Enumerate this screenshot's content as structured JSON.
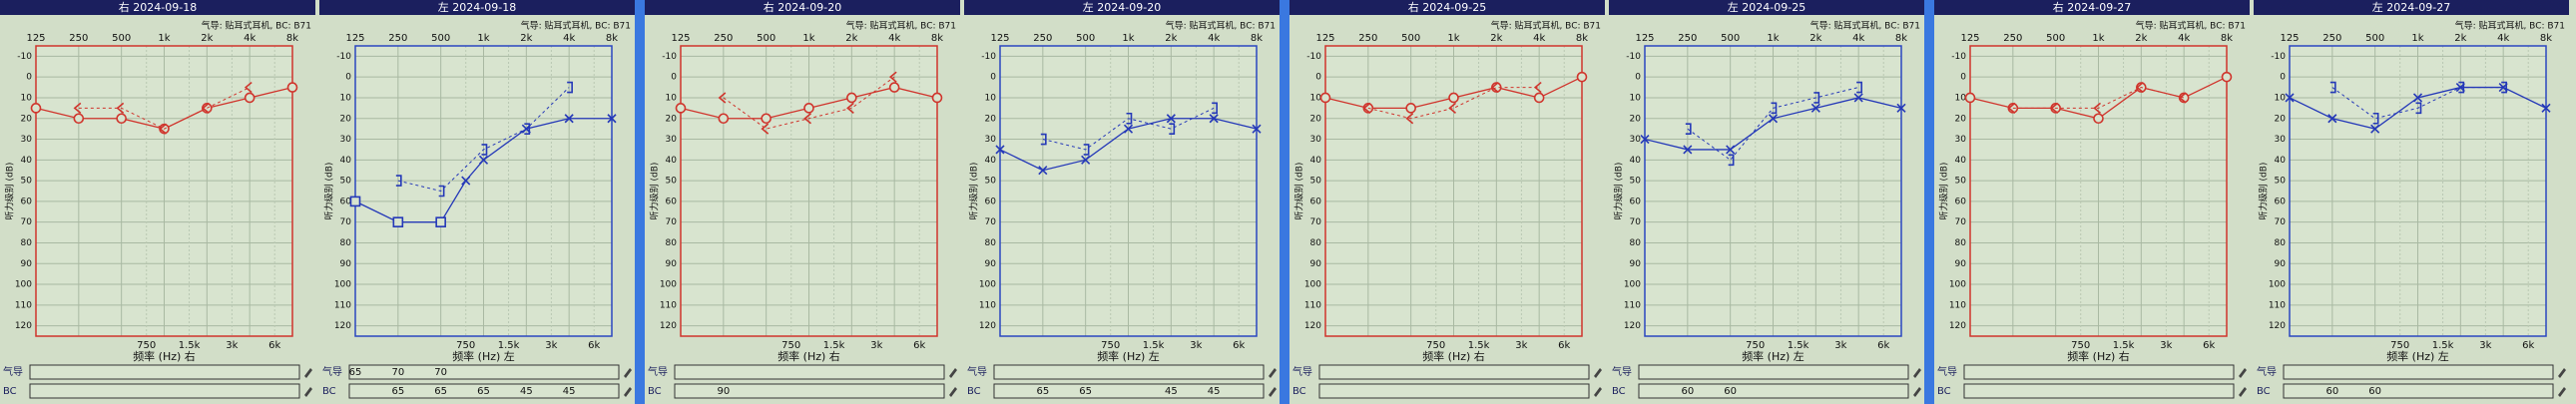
{
  "chart_data": [
    {
      "type": "audiogram",
      "title": "右 2024-09-18",
      "subtitle": "气导: 贴耳式耳机, BC: B71",
      "ylabel": "听力级别 (dB)",
      "xlabel": "频率 (Hz) 右",
      "frame_color": "#d0342c",
      "xscale": "log",
      "yinverted": true,
      "grid": true,
      "xlim": [
        125,
        8000
      ],
      "ylim": [
        -15,
        125
      ],
      "xticks": [
        125,
        250,
        500,
        {
          "value": 1000,
          "label": "1k"
        },
        {
          "value": 2000,
          "label": "2k"
        },
        {
          "value": 4000,
          "label": "4k"
        },
        {
          "value": 8000,
          "label": "8k"
        }
      ],
      "x2ticks": [
        750,
        {
          "value": 1500,
          "label": "1.5k"
        },
        {
          "value": 3000,
          "label": "3k"
        },
        {
          "value": 6000,
          "label": "6k"
        }
      ],
      "yticks": [
        -10,
        0,
        10,
        20,
        30,
        40,
        50,
        60,
        70,
        80,
        90,
        100,
        110,
        120
      ],
      "series": [
        {
          "color": "#d0342c",
          "marker": "circle",
          "line": "solid",
          "x": [
            125,
            250,
            500,
            1000,
            2000,
            4000,
            8000
          ],
          "values": [
            15,
            20,
            20,
            25,
            15,
            10,
            5
          ]
        },
        {
          "color": "#d0342c",
          "marker": "<",
          "line": "dashed",
          "x": [
            250,
            500,
            1000,
            2000,
            4000
          ],
          "values": [
            15,
            15,
            25,
            15,
            5
          ]
        }
      ],
      "masking": [
        {
          "label": "气导",
          "x": [],
          "values": []
        },
        {
          "label": "BC",
          "x": [],
          "values": []
        }
      ]
    },
    {
      "type": "audiogram",
      "title": "左 2024-09-18",
      "subtitle": "气导: 贴耳式耳机, BC: B71",
      "ylabel": "听力级别 (dB)",
      "xlabel": "频率 (Hz) 左",
      "frame_color": "#2a46c0",
      "xscale": "log",
      "yinverted": true,
      "grid": true,
      "xlim": [
        125,
        8000
      ],
      "ylim": [
        -15,
        125
      ],
      "xticks": [
        125,
        250,
        500,
        {
          "value": 1000,
          "label": "1k"
        },
        {
          "value": 2000,
          "label": "2k"
        },
        {
          "value": 4000,
          "label": "4k"
        },
        {
          "value": 8000,
          "label": "8k"
        }
      ],
      "x2ticks": [
        750,
        {
          "value": 1500,
          "label": "1.5k"
        },
        {
          "value": 3000,
          "label": "3k"
        },
        {
          "value": 6000,
          "label": "6k"
        }
      ],
      "yticks": [
        -10,
        0,
        10,
        20,
        30,
        40,
        50,
        60,
        70,
        80,
        90,
        100,
        110,
        120
      ],
      "series": [
        {
          "color": "#2438b8",
          "markers": [
            "square",
            "square",
            "square",
            "x",
            "x",
            "x",
            "x",
            "x"
          ],
          "line": "solid",
          "x": [
            125,
            250,
            500,
            750,
            1000,
            2000,
            4000,
            8000
          ],
          "values": [
            60,
            70,
            70,
            50,
            40,
            25,
            20,
            20
          ]
        },
        {
          "color": "#2438b8",
          "marker": "]",
          "line": "dashed",
          "x": [
            250,
            500,
            1000,
            2000,
            4000
          ],
          "values": [
            50,
            55,
            35,
            25,
            5
          ]
        }
      ],
      "masking": [
        {
          "label": "气导",
          "x": [
            125,
            250,
            500
          ],
          "values": [
            65,
            70,
            70
          ]
        },
        {
          "label": "BC",
          "x": [
            250,
            500,
            1000,
            2000,
            4000
          ],
          "values": [
            65,
            65,
            65,
            45,
            45
          ]
        }
      ]
    },
    {
      "type": "audiogram",
      "title": "右 2024-09-20",
      "subtitle": "气导: 贴耳式耳机, BC: B71",
      "ylabel": "听力级别 (dB)",
      "xlabel": "频率 (Hz) 右",
      "frame_color": "#d0342c",
      "xscale": "log",
      "yinverted": true,
      "grid": true,
      "xlim": [
        125,
        8000
      ],
      "ylim": [
        -15,
        125
      ],
      "xticks": [
        125,
        250,
        500,
        {
          "value": 1000,
          "label": "1k"
        },
        {
          "value": 2000,
          "label": "2k"
        },
        {
          "value": 4000,
          "label": "4k"
        },
        {
          "value": 8000,
          "label": "8k"
        }
      ],
      "x2ticks": [
        750,
        {
          "value": 1500,
          "label": "1.5k"
        },
        {
          "value": 3000,
          "label": "3k"
        },
        {
          "value": 6000,
          "label": "6k"
        }
      ],
      "yticks": [
        -10,
        0,
        10,
        20,
        30,
        40,
        50,
        60,
        70,
        80,
        90,
        100,
        110,
        120
      ],
      "series": [
        {
          "color": "#d0342c",
          "marker": "circle",
          "line": "solid",
          "x": [
            125,
            250,
            500,
            1000,
            2000,
            4000,
            8000
          ],
          "values": [
            15,
            20,
            20,
            15,
            10,
            5,
            10
          ]
        },
        {
          "color": "#d0342c",
          "marker": "<",
          "line": "dashed",
          "x": [
            250,
            500,
            1000,
            2000,
            4000
          ],
          "values": [
            10,
            25,
            20,
            15,
            0
          ]
        }
      ],
      "masking": [
        {
          "label": "气导",
          "x": [],
          "values": []
        },
        {
          "label": "BC",
          "x": [
            250
          ],
          "values": [
            90
          ]
        }
      ]
    },
    {
      "type": "audiogram",
      "title": "左 2024-09-20",
      "subtitle": "气导: 贴耳式耳机, BC: B71",
      "ylabel": "听力级别 (dB)",
      "xlabel": "频率 (Hz) 左",
      "frame_color": "#2a46c0",
      "xscale": "log",
      "yinverted": true,
      "grid": true,
      "xlim": [
        125,
        8000
      ],
      "ylim": [
        -15,
        125
      ],
      "xticks": [
        125,
        250,
        500,
        {
          "value": 1000,
          "label": "1k"
        },
        {
          "value": 2000,
          "label": "2k"
        },
        {
          "value": 4000,
          "label": "4k"
        },
        {
          "value": 8000,
          "label": "8k"
        }
      ],
      "x2ticks": [
        750,
        {
          "value": 1500,
          "label": "1.5k"
        },
        {
          "value": 3000,
          "label": "3k"
        },
        {
          "value": 6000,
          "label": "6k"
        }
      ],
      "yticks": [
        -10,
        0,
        10,
        20,
        30,
        40,
        50,
        60,
        70,
        80,
        90,
        100,
        110,
        120
      ],
      "series": [
        {
          "color": "#2438b8",
          "marker": "x",
          "line": "solid",
          "x": [
            125,
            250,
            500,
            1000,
            2000,
            4000,
            8000
          ],
          "values": [
            35,
            45,
            40,
            25,
            20,
            20,
            25
          ]
        },
        {
          "color": "#2438b8",
          "marker": "]",
          "line": "dashed",
          "x": [
            250,
            500,
            1000,
            2000,
            4000
          ],
          "values": [
            30,
            35,
            20,
            25,
            15
          ]
        }
      ],
      "masking": [
        {
          "label": "气导",
          "x": [],
          "values": []
        },
        {
          "label": "BC",
          "x": [
            250,
            500,
            2000,
            4000
          ],
          "values": [
            65,
            65,
            45,
            45
          ]
        }
      ]
    },
    {
      "type": "audiogram",
      "title": "右 2024-09-25",
      "subtitle": "气导: 贴耳式耳机, BC: B71",
      "ylabel": "听力级别 (dB)",
      "xlabel": "频率 (Hz) 右",
      "frame_color": "#d0342c",
      "xscale": "log",
      "yinverted": true,
      "grid": true,
      "xlim": [
        125,
        8000
      ],
      "ylim": [
        -15,
        125
      ],
      "xticks": [
        125,
        250,
        500,
        {
          "value": 1000,
          "label": "1k"
        },
        {
          "value": 2000,
          "label": "2k"
        },
        {
          "value": 4000,
          "label": "4k"
        },
        {
          "value": 8000,
          "label": "8k"
        }
      ],
      "x2ticks": [
        750,
        {
          "value": 1500,
          "label": "1.5k"
        },
        {
          "value": 3000,
          "label": "3k"
        },
        {
          "value": 6000,
          "label": "6k"
        }
      ],
      "yticks": [
        -10,
        0,
        10,
        20,
        30,
        40,
        50,
        60,
        70,
        80,
        90,
        100,
        110,
        120
      ],
      "series": [
        {
          "color": "#d0342c",
          "marker": "circle",
          "line": "solid",
          "x": [
            125,
            250,
            500,
            1000,
            2000,
            4000,
            8000
          ],
          "values": [
            10,
            15,
            15,
            10,
            5,
            10,
            0
          ]
        },
        {
          "color": "#d0342c",
          "marker": "<",
          "line": "dashed",
          "x": [
            250,
            500,
            1000,
            2000,
            4000
          ],
          "values": [
            15,
            20,
            15,
            5,
            5
          ]
        }
      ],
      "masking": [
        {
          "label": "气导",
          "x": [],
          "values": []
        },
        {
          "label": "BC",
          "x": [],
          "values": []
        }
      ]
    },
    {
      "type": "audiogram",
      "title": "左 2024-09-25",
      "subtitle": "气导: 贴耳式耳机, BC: B71",
      "ylabel": "听力级别 (dB)",
      "xlabel": "频率 (Hz) 左",
      "frame_color": "#2a46c0",
      "xscale": "log",
      "yinverted": true,
      "grid": true,
      "xlim": [
        125,
        8000
      ],
      "ylim": [
        -15,
        125
      ],
      "xticks": [
        125,
        250,
        500,
        {
          "value": 1000,
          "label": "1k"
        },
        {
          "value": 2000,
          "label": "2k"
        },
        {
          "value": 4000,
          "label": "4k"
        },
        {
          "value": 8000,
          "label": "8k"
        }
      ],
      "x2ticks": [
        750,
        {
          "value": 1500,
          "label": "1.5k"
        },
        {
          "value": 3000,
          "label": "3k"
        },
        {
          "value": 6000,
          "label": "6k"
        }
      ],
      "yticks": [
        -10,
        0,
        10,
        20,
        30,
        40,
        50,
        60,
        70,
        80,
        90,
        100,
        110,
        120
      ],
      "series": [
        {
          "color": "#2438b8",
          "marker": "x",
          "line": "solid",
          "x": [
            125,
            250,
            500,
            1000,
            2000,
            4000,
            8000
          ],
          "values": [
            30,
            35,
            35,
            20,
            15,
            10,
            15
          ]
        },
        {
          "color": "#2438b8",
          "marker": "]",
          "line": "dashed",
          "x": [
            250,
            500,
            1000,
            2000,
            4000
          ],
          "values": [
            25,
            40,
            15,
            10,
            5
          ]
        }
      ],
      "masking": [
        {
          "label": "气导",
          "x": [],
          "values": []
        },
        {
          "label": "BC",
          "x": [
            250,
            500
          ],
          "values": [
            60,
            60
          ]
        }
      ]
    },
    {
      "type": "audiogram",
      "title": "右 2024-09-27",
      "subtitle": "气导: 贴耳式耳机, BC: B71",
      "ylabel": "听力级别 (dB)",
      "xlabel": "频率 (Hz) 右",
      "frame_color": "#d0342c",
      "xscale": "log",
      "yinverted": true,
      "grid": true,
      "xlim": [
        125,
        8000
      ],
      "ylim": [
        -15,
        125
      ],
      "xticks": [
        125,
        250,
        500,
        {
          "value": 1000,
          "label": "1k"
        },
        {
          "value": 2000,
          "label": "2k"
        },
        {
          "value": 4000,
          "label": "4k"
        },
        {
          "value": 8000,
          "label": "8k"
        }
      ],
      "x2ticks": [
        750,
        {
          "value": 1500,
          "label": "1.5k"
        },
        {
          "value": 3000,
          "label": "3k"
        },
        {
          "value": 6000,
          "label": "6k"
        }
      ],
      "yticks": [
        -10,
        0,
        10,
        20,
        30,
        40,
        50,
        60,
        70,
        80,
        90,
        100,
        110,
        120
      ],
      "series": [
        {
          "color": "#d0342c",
          "marker": "circle",
          "line": "solid",
          "x": [
            125,
            250,
            500,
            1000,
            2000,
            4000,
            8000
          ],
          "values": [
            10,
            15,
            15,
            20,
            5,
            10,
            0
          ]
        },
        {
          "color": "#d0342c",
          "marker": "<",
          "line": "dashed",
          "x": [
            250,
            500,
            1000,
            2000,
            4000
          ],
          "values": [
            15,
            15,
            15,
            5,
            10
          ]
        }
      ],
      "masking": [
        {
          "label": "气导",
          "x": [],
          "values": []
        },
        {
          "label": "BC",
          "x": [],
          "values": []
        }
      ]
    },
    {
      "type": "audiogram",
      "title": "左 2024-09-27",
      "subtitle": "气导: 贴耳式耳机, BC: B71",
      "ylabel": "听力级别 (dB)",
      "xlabel": "频率 (Hz) 左",
      "frame_color": "#2a46c0",
      "xscale": "log",
      "yinverted": true,
      "grid": true,
      "xlim": [
        125,
        8000
      ],
      "ylim": [
        -15,
        125
      ],
      "xticks": [
        125,
        250,
        500,
        {
          "value": 1000,
          "label": "1k"
        },
        {
          "value": 2000,
          "label": "2k"
        },
        {
          "value": 4000,
          "label": "4k"
        },
        {
          "value": 8000,
          "label": "8k"
        }
      ],
      "x2ticks": [
        750,
        {
          "value": 1500,
          "label": "1.5k"
        },
        {
          "value": 3000,
          "label": "3k"
        },
        {
          "value": 6000,
          "label": "6k"
        }
      ],
      "yticks": [
        -10,
        0,
        10,
        20,
        30,
        40,
        50,
        60,
        70,
        80,
        90,
        100,
        110,
        120
      ],
      "series": [
        {
          "color": "#2438b8",
          "marker": "x",
          "line": "solid",
          "x": [
            125,
            250,
            500,
            1000,
            2000,
            4000,
            8000
          ],
          "values": [
            10,
            20,
            25,
            10,
            5,
            5,
            15
          ]
        },
        {
          "color": "#2438b8",
          "marker": "]",
          "line": "dashed",
          "x": [
            250,
            500,
            1000,
            2000,
            4000
          ],
          "values": [
            5,
            20,
            15,
            5,
            5
          ]
        }
      ],
      "masking": [
        {
          "label": "气导",
          "x": [],
          "values": []
        },
        {
          "label": "BC",
          "x": [
            250,
            500
          ],
          "values": [
            60,
            60
          ]
        }
      ]
    }
  ]
}
